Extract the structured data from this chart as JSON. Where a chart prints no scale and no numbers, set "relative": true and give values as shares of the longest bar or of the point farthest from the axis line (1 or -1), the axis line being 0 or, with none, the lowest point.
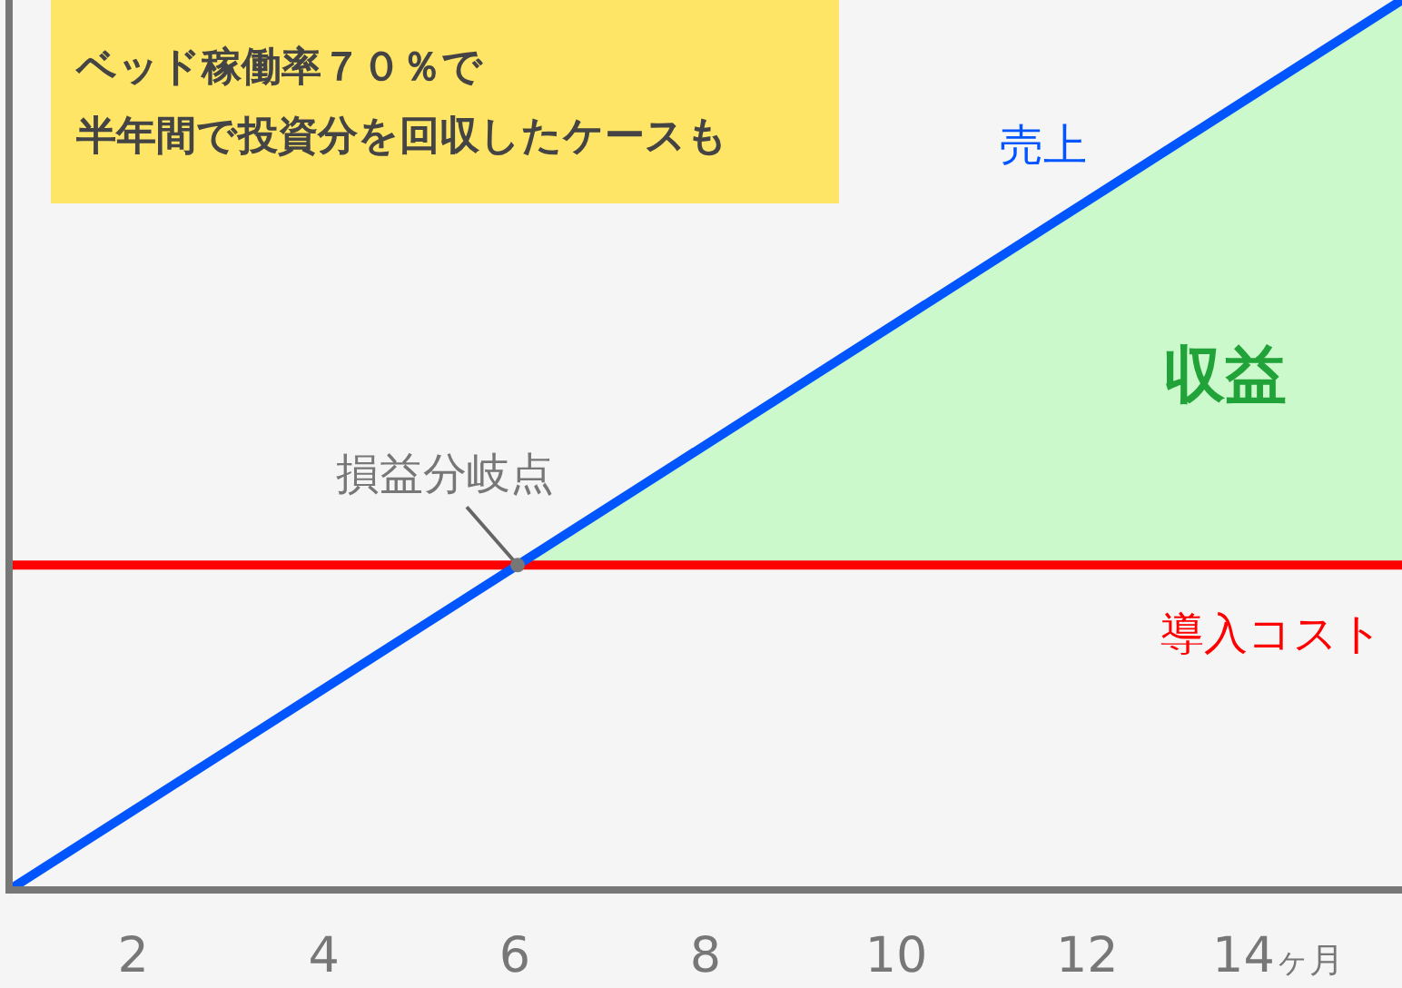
{
  "chart_data": {
    "type": "line",
    "relative": true,
    "xlim": [
      0.7,
      15.3
    ],
    "xticks": [
      2,
      4,
      6,
      8,
      10,
      12,
      {
        "value": 14,
        "label": "14ヶ月"
      }
    ],
    "series": [
      {
        "name": "収益",
        "type": "area",
        "color": "#ccf9cc",
        "x": [
          6.03,
          15.3
        ],
        "values": [
          0.365,
          1
        ]
      },
      {
        "name": "導入コスト",
        "color": "#ff0000",
        "x": [
          0.7,
          15.3
        ],
        "values": [
          0.365,
          0.365
        ]
      },
      {
        "name": "売上",
        "color": "#0055ff",
        "x": [
          0.7,
          15.3
        ],
        "values": [
          0,
          1
        ]
      }
    ],
    "annotations": [
      "ベッド稼働率７０％で",
      "半年間で投資分を回収したケースも",
      {
        "text": "損益分岐点",
        "x": 6.03,
        "y": 0.365
      }
    ],
    "grid": false,
    "legend": false,
    "line_style": "solid"
  }
}
